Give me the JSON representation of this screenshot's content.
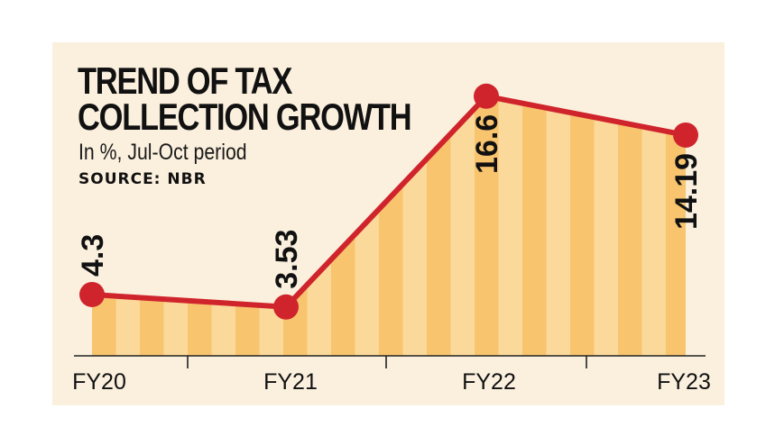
{
  "chart_data": {
    "type": "area",
    "title": "TREND OF TAX COLLECTION GROWTH",
    "title_lines": [
      "TREND OF TAX",
      "COLLECTION GROWTH"
    ],
    "subtitle": "In %, Jul-Oct period",
    "source": "SOURCE: NBR",
    "categories": [
      "FY20",
      "FY21",
      "FY22",
      "FY23"
    ],
    "values": [
      4.3,
      3.53,
      16.6,
      14.19
    ],
    "value_labels": [
      "4.3",
      "3.53",
      "16.6",
      "14.19"
    ],
    "xlabel": "",
    "ylabel": "",
    "ylim": [
      0,
      17
    ],
    "grid": false,
    "legend": "none",
    "colors": {
      "background": "#fbf0de",
      "area_stripe": "#f8c46e",
      "area_stripe_light": "#fbd99b",
      "line": "#d0242c",
      "marker": "#d0242c",
      "axis": "#222222",
      "text": "#111111"
    }
  }
}
